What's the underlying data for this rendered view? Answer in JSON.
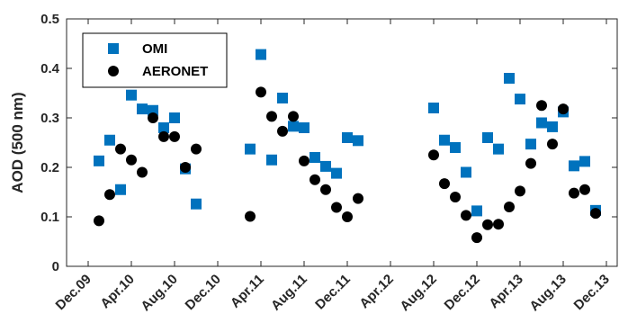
{
  "chart_data": {
    "type": "scatter",
    "ylabel": "AOD (500 nm)",
    "xlabel": "",
    "title": "",
    "ylim": [
      0,
      0.5
    ],
    "y_ticks": [
      "0",
      "0.1",
      "0.2",
      "0.3",
      "0.4",
      "0.5"
    ],
    "y_tick_values": [
      0,
      0.1,
      0.2,
      0.3,
      0.4,
      0.5
    ],
    "x_ticks": [
      "Dec.09",
      "Apr.10",
      "Aug.10",
      "Dec.10",
      "Apr.11",
      "Aug.11",
      "Dec.11",
      "Apr.12",
      "Aug.12",
      "Dec.12",
      "Apr.13",
      "Aug.13",
      "Dec.13"
    ],
    "x_tick_dates": [
      "2009-12",
      "2010-04",
      "2010-08",
      "2010-12",
      "2011-04",
      "2011-08",
      "2011-12",
      "2012-04",
      "2012-08",
      "2012-12",
      "2013-04",
      "2013-08",
      "2013-12"
    ],
    "xlim": [
      "2009-10",
      "2014-01"
    ],
    "grid": false,
    "legend_position": "top-left",
    "series": [
      {
        "name": "OMI",
        "color": "#0072BD",
        "marker": "square",
        "points": [
          {
            "x": "2010-01",
            "y": 0.213
          },
          {
            "x": "2010-02",
            "y": 0.255
          },
          {
            "x": "2010-03",
            "y": 0.155
          },
          {
            "x": "2010-04",
            "y": 0.346
          },
          {
            "x": "2010-05",
            "y": 0.318
          },
          {
            "x": "2010-06",
            "y": 0.315
          },
          {
            "x": "2010-07",
            "y": 0.28
          },
          {
            "x": "2010-08",
            "y": 0.3
          },
          {
            "x": "2010-09",
            "y": 0.197
          },
          {
            "x": "2010-10",
            "y": 0.126
          },
          {
            "x": "2011-03",
            "y": 0.237
          },
          {
            "x": "2011-04",
            "y": 0.428
          },
          {
            "x": "2011-05",
            "y": 0.215
          },
          {
            "x": "2011-06",
            "y": 0.34
          },
          {
            "x": "2011-07",
            "y": 0.283
          },
          {
            "x": "2011-08",
            "y": 0.28
          },
          {
            "x": "2011-09",
            "y": 0.22
          },
          {
            "x": "2011-10",
            "y": 0.202
          },
          {
            "x": "2011-11",
            "y": 0.188
          },
          {
            "x": "2011-12",
            "y": 0.26
          },
          {
            "x": "2012-01",
            "y": 0.254
          },
          {
            "x": "2012-08",
            "y": 0.32
          },
          {
            "x": "2012-09",
            "y": 0.255
          },
          {
            "x": "2012-10",
            "y": 0.24
          },
          {
            "x": "2012-11",
            "y": 0.19
          },
          {
            "x": "2012-12",
            "y": 0.112
          },
          {
            "x": "2013-01",
            "y": 0.26
          },
          {
            "x": "2013-02",
            "y": 0.237
          },
          {
            "x": "2013-03",
            "y": 0.38
          },
          {
            "x": "2013-04",
            "y": 0.338
          },
          {
            "x": "2013-05",
            "y": 0.247
          },
          {
            "x": "2013-06",
            "y": 0.29
          },
          {
            "x": "2013-07",
            "y": 0.282
          },
          {
            "x": "2013-08",
            "y": 0.312
          },
          {
            "x": "2013-09",
            "y": 0.203
          },
          {
            "x": "2013-10",
            "y": 0.212
          },
          {
            "x": "2013-11",
            "y": 0.113
          }
        ]
      },
      {
        "name": "AERONET",
        "color": "#000000",
        "marker": "circle",
        "points": [
          {
            "x": "2010-01",
            "y": 0.092
          },
          {
            "x": "2010-02",
            "y": 0.145
          },
          {
            "x": "2010-03",
            "y": 0.237
          },
          {
            "x": "2010-04",
            "y": 0.215
          },
          {
            "x": "2010-05",
            "y": 0.19
          },
          {
            "x": "2010-06",
            "y": 0.3
          },
          {
            "x": "2010-07",
            "y": 0.262
          },
          {
            "x": "2010-08",
            "y": 0.262
          },
          {
            "x": "2010-09",
            "y": 0.2
          },
          {
            "x": "2010-10",
            "y": 0.237
          },
          {
            "x": "2011-03",
            "y": 0.101
          },
          {
            "x": "2011-04",
            "y": 0.352
          },
          {
            "x": "2011-05",
            "y": 0.303
          },
          {
            "x": "2011-06",
            "y": 0.273
          },
          {
            "x": "2011-07",
            "y": 0.303
          },
          {
            "x": "2011-08",
            "y": 0.213
          },
          {
            "x": "2011-09",
            "y": 0.175
          },
          {
            "x": "2011-10",
            "y": 0.155
          },
          {
            "x": "2011-11",
            "y": 0.119
          },
          {
            "x": "2011-12",
            "y": 0.1
          },
          {
            "x": "2012-01",
            "y": 0.137
          },
          {
            "x": "2012-08",
            "y": 0.225
          },
          {
            "x": "2012-09",
            "y": 0.167
          },
          {
            "x": "2012-10",
            "y": 0.14
          },
          {
            "x": "2012-11",
            "y": 0.103
          },
          {
            "x": "2012-12",
            "y": 0.058
          },
          {
            "x": "2013-01",
            "y": 0.084
          },
          {
            "x": "2013-02",
            "y": 0.085
          },
          {
            "x": "2013-03",
            "y": 0.12
          },
          {
            "x": "2013-04",
            "y": 0.152
          },
          {
            "x": "2013-05",
            "y": 0.208
          },
          {
            "x": "2013-06",
            "y": 0.325
          },
          {
            "x": "2013-07",
            "y": 0.247
          },
          {
            "x": "2013-08",
            "y": 0.318
          },
          {
            "x": "2013-09",
            "y": 0.148
          },
          {
            "x": "2013-10",
            "y": 0.155
          },
          {
            "x": "2013-11",
            "y": 0.107
          }
        ]
      }
    ]
  }
}
